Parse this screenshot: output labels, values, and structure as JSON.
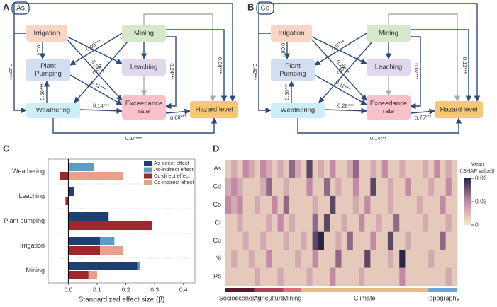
{
  "diagrams": [
    {
      "panel": "A",
      "tag": "As",
      "nodes": [
        {
          "label": [
            "Irrigation"
          ],
          "color": "#f9d5c5"
        },
        {
          "label": [
            "Plant",
            "Pumping"
          ],
          "color": "#d4def2"
        },
        {
          "label": [
            "Weathering"
          ],
          "color": "#cdeef7"
        },
        {
          "label": [
            "Mining"
          ],
          "color": "#d6e8c9"
        },
        {
          "label": [
            "Leaching"
          ],
          "color": "#e2d8ee"
        },
        {
          "label": [
            "Exceedance",
            "rate"
          ],
          "color": "#f6c1c9"
        },
        {
          "label": [
            "Hazard level"
          ],
          "color": "#f7c873"
        }
      ],
      "edge_labels": [
        "0.42***",
        "0.04",
        "0.66***",
        "0.09***",
        "0.04*",
        "0.19***",
        "0.11***",
        "0.14***",
        "0.24***",
        "0.08***",
        "0.68***",
        "0.14***"
      ]
    },
    {
      "panel": "B",
      "tag": "Cd",
      "nodes": [
        {
          "label": [
            "Irrigation"
          ],
          "color": "#f9d5c5"
        },
        {
          "label": [
            "Plant",
            "Pumping"
          ],
          "color": "#d4def2"
        },
        {
          "label": [
            "Weathering"
          ],
          "color": "#cdeef7"
        },
        {
          "label": [
            "Mining"
          ],
          "color": "#d6e8c9"
        },
        {
          "label": [
            "Leaching"
          ],
          "color": "#e2d8ee"
        },
        {
          "label": [
            "Exceedance",
            "rate"
          ],
          "color": "#f6c1c9"
        },
        {
          "label": [
            "Hazard level"
          ],
          "color": "#f7c873"
        }
      ],
      "edge_labels": [
        "0.42***",
        "0.06**",
        "0.66***",
        "0.07**",
        "0.08*",
        "0.22***",
        "0.11***",
        "0.26***",
        "0.07***",
        "0.12***",
        "0.76***",
        "0.14***"
      ]
    }
  ],
  "chart_data": [
    {
      "panel": "C",
      "type": "hbar_stacked",
      "categories": [
        "Weathering",
        "Leaching",
        "Plant pumping",
        "Irrigation",
        "Mining"
      ],
      "series": [
        {
          "name": "As-direct effect",
          "color": "#1f3f73",
          "values": [
            null,
            0.02,
            0.14,
            0.11,
            0.24
          ]
        },
        {
          "name": "As-indirect effect",
          "color": "#5c9cc7",
          "values": [
            0.09,
            null,
            null,
            0.05,
            0.01
          ]
        },
        {
          "name": "Cd-direct effect",
          "color": "#a0282c",
          "values": [
            -0.03,
            -0.01,
            0.29,
            0.11,
            0.07
          ]
        },
        {
          "name": "Cd-indirect effect",
          "color": "#e9a08a",
          "values": [
            0.19,
            null,
            null,
            0.08,
            0.03
          ]
        }
      ],
      "x_label": "Standardized effect size (β)",
      "xlim": [
        -0.07,
        0.44
      ],
      "xticks": [
        {
          "value": 0,
          "label": "0.0"
        },
        0.1,
        0.2,
        0.3,
        0.4
      ],
      "legend": "upper right"
    },
    {
      "panel": "D",
      "type": "heatmap",
      "rows": [
        "As",
        "Cd",
        "Co",
        "Cr",
        "Cu",
        "Ni",
        "Pb"
      ],
      "values": [
        [
          0.01,
          0.02,
          0.01,
          0.03,
          0.02,
          0.01,
          0.03,
          0.02,
          0.01,
          0.02,
          0.01,
          0.04,
          0.02,
          0.01,
          0.05,
          0.01,
          0.02,
          0.01,
          0.03,
          0.01,
          0.01,
          0.02,
          0.04,
          0.01,
          0.01,
          0.02,
          0.01,
          0.03,
          0.01,
          0.01,
          0.02,
          0.01,
          0.01,
          0.01,
          0.02,
          0.01,
          0.03,
          0.01,
          0.02,
          0.01
        ],
        [
          0.02,
          0.03,
          0.02,
          0.01,
          0.01,
          0.01,
          0.02,
          0.04,
          0.01,
          0.01,
          0.02,
          0.01,
          0.01,
          0.01,
          0.03,
          0.01,
          0.01,
          0.04,
          0.01,
          0.02,
          0.01,
          0.01,
          0.03,
          0.01,
          0.01,
          0.05,
          0.01,
          0.01,
          0.02,
          0.01,
          0.01,
          0.03,
          0.01,
          0.01,
          0.01,
          0.02,
          0.01,
          0.01,
          0.03,
          0.01
        ],
        [
          0.03,
          0.02,
          0.03,
          0.01,
          0.01,
          0.02,
          0.01,
          0.01,
          0.03,
          0.01,
          0.04,
          0.01,
          0.01,
          0.01,
          0.01,
          0.02,
          0.01,
          0.01,
          0.05,
          0.01,
          0.01,
          0.01,
          0.02,
          0.01,
          0.03,
          0.01,
          0.01,
          0.01,
          0.02,
          0.01,
          0.01,
          0.01,
          0.01,
          0.02,
          0.01,
          0.01,
          0.01,
          0.03,
          0.01,
          0.01
        ],
        [
          0.01,
          0.01,
          0.02,
          0.01,
          0.01,
          0.01,
          0.01,
          0.02,
          0.01,
          0.03,
          0.01,
          0.02,
          0.01,
          0.01,
          0.01,
          0.04,
          0.01,
          0.05,
          0.01,
          0.01,
          0.02,
          0.01,
          0.01,
          0.03,
          0.01,
          0.01,
          0.02,
          0.01,
          0.01,
          0.04,
          0.01,
          0.01,
          0.01,
          0.01,
          0.02,
          0.01,
          0.01,
          0.01,
          0.02,
          0.01
        ],
        [
          0.01,
          0.01,
          0.01,
          0.02,
          0.01,
          0.01,
          0.02,
          0.01,
          0.01,
          0.01,
          0.02,
          0.01,
          0.01,
          0.02,
          0.01,
          0.05,
          0.06,
          0.01,
          0.01,
          0.02,
          0.01,
          0.04,
          0.01,
          0.01,
          0.01,
          0.03,
          0.01,
          0.01,
          0.05,
          0.01,
          0.01,
          0.02,
          0.01,
          0.01,
          0.01,
          0.01,
          0.01,
          0.04,
          0.01,
          0.01
        ],
        [
          0.01,
          0.02,
          0.01,
          0.01,
          0.02,
          0.01,
          0.01,
          0.03,
          0.01,
          0.01,
          0.01,
          0.01,
          0.02,
          0.01,
          0.01,
          0.03,
          0.01,
          0.01,
          0.01,
          0.04,
          0.01,
          0.01,
          0.01,
          0.01,
          0.05,
          0.01,
          0.01,
          0.01,
          0.02,
          0.01,
          0.06,
          0.01,
          0.01,
          0.01,
          0.01,
          0.02,
          0.01,
          0.01,
          0.01,
          0.01
        ],
        [
          0.01,
          0.01,
          0.01,
          0.01,
          0.01,
          0.02,
          0.01,
          0.01,
          0.01,
          0.02,
          0.01,
          0.01,
          0.01,
          0.01,
          0.02,
          0.01,
          0.01,
          0.01,
          0.03,
          0.01,
          0.01,
          0.01,
          0.01,
          0.02,
          0.01,
          0.01,
          0.01,
          0.01,
          0.01,
          0.01,
          0.03,
          0.01,
          0.01,
          0.01,
          0.01,
          0.01,
          0.01,
          0.01,
          0.02,
          0.01
        ]
      ],
      "column_groups": [
        {
          "name": "Socioeconomy",
          "color": "#5a1a2e",
          "count": 5
        },
        {
          "name": "Agriculture",
          "color": "#b0405a",
          "count": 5
        },
        {
          "name": "Mining",
          "color": "#d9707a",
          "count": 3
        },
        {
          "name": "Climate",
          "color": "#e6bb8c",
          "count": 22
        },
        {
          "name": "Topography",
          "color": "#6ba3d6",
          "count": 5
        }
      ],
      "colors": [
        "#f6e9c6",
        "#c38aa6",
        "#2c2445"
      ],
      "zlim": [
        0,
        0.06
      ],
      "zticks": [
        0,
        0.03,
        0.06
      ],
      "colorbar_title": [
        "Mean",
        "(|SHAP value|)"
      ]
    }
  ]
}
